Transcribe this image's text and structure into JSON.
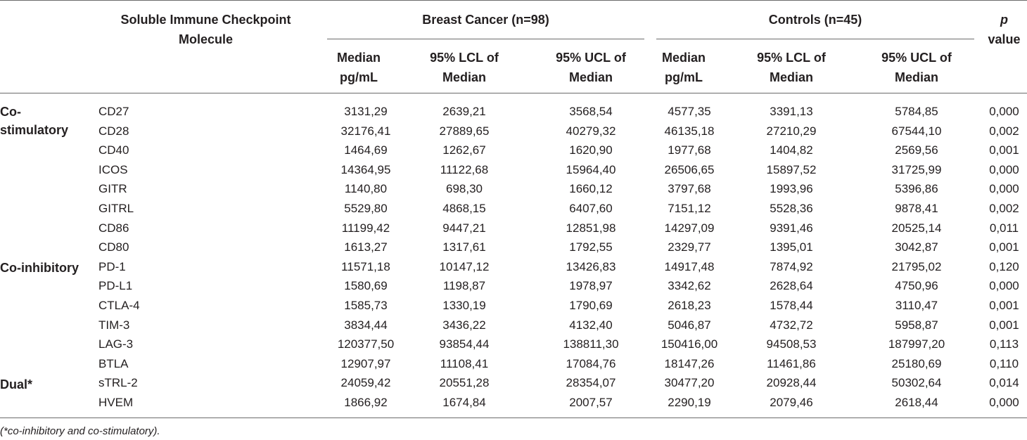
{
  "header": {
    "molecule": "Soluble Immune Checkpoint Molecule",
    "group_bc": "Breast Cancer (n=98)",
    "group_ctrl": "Controls (n=45)",
    "p_label": "p",
    "p_value_word": "value",
    "median": "Median pg/mL",
    "lcl": "95% LCL of Median",
    "ucl": "95% UCL of Median"
  },
  "categories": {
    "costim": "Co-stimulatory",
    "coinhib": "Co-inhibitory",
    "dual": "Dual*"
  },
  "rows": [
    {
      "name": "CD27",
      "bc_median": "3131,29",
      "bc_lcl": "2639,21",
      "bc_ucl": "3568,54",
      "c_median": "4577,35",
      "c_lcl": "3391,13",
      "c_ucl": "5784,85",
      "p": "0,000"
    },
    {
      "name": "CD28",
      "bc_median": "32176,41",
      "bc_lcl": "27889,65",
      "bc_ucl": "40279,32",
      "c_median": "46135,18",
      "c_lcl": "27210,29",
      "c_ucl": "67544,10",
      "p": "0,002"
    },
    {
      "name": "CD40",
      "bc_median": "1464,69",
      "bc_lcl": "1262,67",
      "bc_ucl": "1620,90",
      "c_median": "1977,68",
      "c_lcl": "1404,82",
      "c_ucl": "2569,56",
      "p": "0,001"
    },
    {
      "name": "ICOS",
      "bc_median": "14364,95",
      "bc_lcl": "11122,68",
      "bc_ucl": "15964,40",
      "c_median": "26506,65",
      "c_lcl": "15897,52",
      "c_ucl": "31725,99",
      "p": "0,000"
    },
    {
      "name": "GITR",
      "bc_median": "1140,80",
      "bc_lcl": "698,30",
      "bc_ucl": "1660,12",
      "c_median": "3797,68",
      "c_lcl": "1993,96",
      "c_ucl": "5396,86",
      "p": "0,000"
    },
    {
      "name": "GITRL",
      "bc_median": "5529,80",
      "bc_lcl": "4868,15",
      "bc_ucl": "6407,60",
      "c_median": "7151,12",
      "c_lcl": "5528,36",
      "c_ucl": "9878,41",
      "p": "0,002"
    },
    {
      "name": "CD86",
      "bc_median": "11199,42",
      "bc_lcl": "9447,21",
      "bc_ucl": "12851,98",
      "c_median": "14297,09",
      "c_lcl": "9391,46",
      "c_ucl": "20525,14",
      "p": "0,011"
    },
    {
      "name": "CD80",
      "bc_median": "1613,27",
      "bc_lcl": "1317,61",
      "bc_ucl": "1792,55",
      "c_median": "2329,77",
      "c_lcl": "1395,01",
      "c_ucl": "3042,87",
      "p": "0,001"
    },
    {
      "name": "PD-1",
      "bc_median": "11571,18",
      "bc_lcl": "10147,12",
      "bc_ucl": "13426,83",
      "c_median": "14917,48",
      "c_lcl": "7874,92",
      "c_ucl": "21795,02",
      "p": "0,120"
    },
    {
      "name": "PD-L1",
      "bc_median": "1580,69",
      "bc_lcl": "1198,87",
      "bc_ucl": "1978,97",
      "c_median": "3342,62",
      "c_lcl": "2628,64",
      "c_ucl": "4750,96",
      "p": "0,000"
    },
    {
      "name": "CTLA-4",
      "bc_median": "1585,73",
      "bc_lcl": "1330,19",
      "bc_ucl": "1790,69",
      "c_median": "2618,23",
      "c_lcl": "1578,44",
      "c_ucl": "3110,47",
      "p": "0,001"
    },
    {
      "name": "TIM-3",
      "bc_median": "3834,44",
      "bc_lcl": "3436,22",
      "bc_ucl": "4132,40",
      "c_median": "5046,87",
      "c_lcl": "4732,72",
      "c_ucl": "5958,87",
      "p": "0,001"
    },
    {
      "name": "LAG-3",
      "bc_median": "120377,50",
      "bc_lcl": "93854,44",
      "bc_ucl": "138811,30",
      "c_median": "150416,00",
      "c_lcl": "94508,53",
      "c_ucl": "187997,20",
      "p": "0,113"
    },
    {
      "name": "BTLA",
      "bc_median": "12907,97",
      "bc_lcl": "11108,41",
      "bc_ucl": "17084,76",
      "c_median": "18147,26",
      "c_lcl": "11461,86",
      "c_ucl": "25180,69",
      "p": "0,110"
    },
    {
      "name": "sTRL-2",
      "bc_median": "24059,42",
      "bc_lcl": "20551,28",
      "bc_ucl": "28354,07",
      "c_median": "30477,20",
      "c_lcl": "20928,44",
      "c_ucl": "50302,64",
      "p": "0,014"
    },
    {
      "name": "HVEM",
      "bc_median": "1866,92",
      "bc_lcl": "1674,84",
      "bc_ucl": "2007,57",
      "c_median": "2290,19",
      "c_lcl": "2079,46",
      "c_ucl": "2618,44",
      "p": "0,000"
    }
  ],
  "footnote": "(*co-inhibitory and co-stimulatory)."
}
